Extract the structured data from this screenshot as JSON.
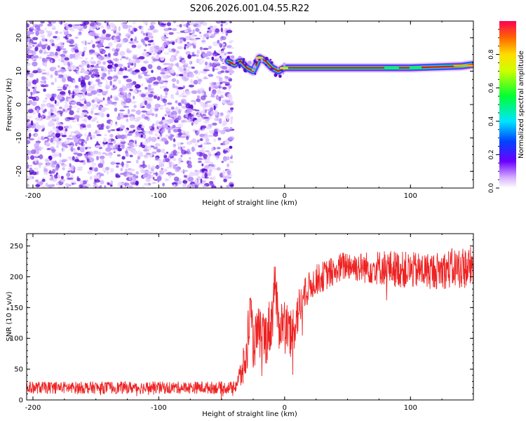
{
  "title": "S206.2026.001.04.55.R22",
  "colors": {
    "signal": "#ee2222",
    "noise": "#8a2be2",
    "axis": "#000000"
  },
  "chart_data": [
    {
      "type": "heatmap",
      "xlabel": "Height of straight line (km)",
      "ylabel": "Frequency (Hz)",
      "xlim": [
        -205,
        150
      ],
      "ylim": [
        -25,
        25
      ],
      "xticks": [
        -200,
        -100,
        0,
        100
      ],
      "xticklabels": [
        "-200",
        "-100",
        "0",
        "100"
      ],
      "yticks": [
        -20,
        -10,
        0,
        10,
        20
      ],
      "yticklabels": [
        "-20",
        "-10",
        "0",
        "10",
        "20"
      ],
      "noise_region_x": [
        -205,
        -45
      ],
      "carrier_frequency_hz": 11,
      "carrier_trace": [
        {
          "x": -45,
          "y": 13
        },
        {
          "x": -40,
          "y": 12
        },
        {
          "x": -35,
          "y": 13
        },
        {
          "x": -30,
          "y": 11
        },
        {
          "x": -25,
          "y": 10
        },
        {
          "x": -20,
          "y": 14
        },
        {
          "x": -15,
          "y": 13
        },
        {
          "x": -10,
          "y": 11
        },
        {
          "x": -5,
          "y": 10
        },
        {
          "x": 0,
          "y": 11
        },
        {
          "x": 10,
          "y": 11
        },
        {
          "x": 50,
          "y": 11
        },
        {
          "x": 100,
          "y": 11
        },
        {
          "x": 140,
          "y": 11.5
        },
        {
          "x": 150,
          "y": 12
        }
      ],
      "colorbar": {
        "label": "Normalized spectral amplitude",
        "range": [
          0,
          1
        ],
        "ticks": [
          0.0,
          0.2,
          0.4,
          0.6,
          0.8
        ],
        "ticklabels": [
          "0.0",
          "0.2",
          "0.4",
          "0.6",
          "0.8"
        ]
      }
    },
    {
      "type": "line",
      "xlabel": "Height of straight line (km)",
      "ylabel": "SNR (10 * v/v)",
      "xlim": [
        -205,
        150
      ],
      "ylim": [
        0,
        270
      ],
      "xticks": [
        -200,
        -100,
        0,
        100
      ],
      "xticklabels": [
        "-200",
        "-100",
        "0",
        "100"
      ],
      "yticks": [
        0,
        50,
        100,
        150,
        200,
        250
      ],
      "yticklabels": [
        "0",
        "50",
        "100",
        "150",
        "200",
        "250"
      ],
      "series": [
        {
          "name": "SNR",
          "color": "#ee2222",
          "x": [
            -205,
            -150,
            -100,
            -60,
            -40,
            -35,
            -30,
            -28,
            -25,
            -20,
            -15,
            -10,
            -8,
            -5,
            0,
            5,
            10,
            15,
            20,
            25,
            30,
            40,
            50,
            60,
            80,
            100,
            120,
            140,
            150
          ],
          "y": [
            20,
            20,
            20,
            20,
            20,
            40,
            70,
            150,
            90,
            110,
            100,
            130,
            200,
            120,
            130,
            100,
            140,
            165,
            185,
            195,
            200,
            210,
            220,
            215,
            215,
            210,
            210,
            215,
            215
          ],
          "spread": [
            10,
            10,
            10,
            10,
            10,
            25,
            40,
            50,
            40,
            45,
            45,
            50,
            40,
            40,
            40,
            45,
            40,
            30,
            25,
            25,
            25,
            25,
            25,
            25,
            30,
            30,
            30,
            35,
            35
          ]
        }
      ]
    }
  ]
}
